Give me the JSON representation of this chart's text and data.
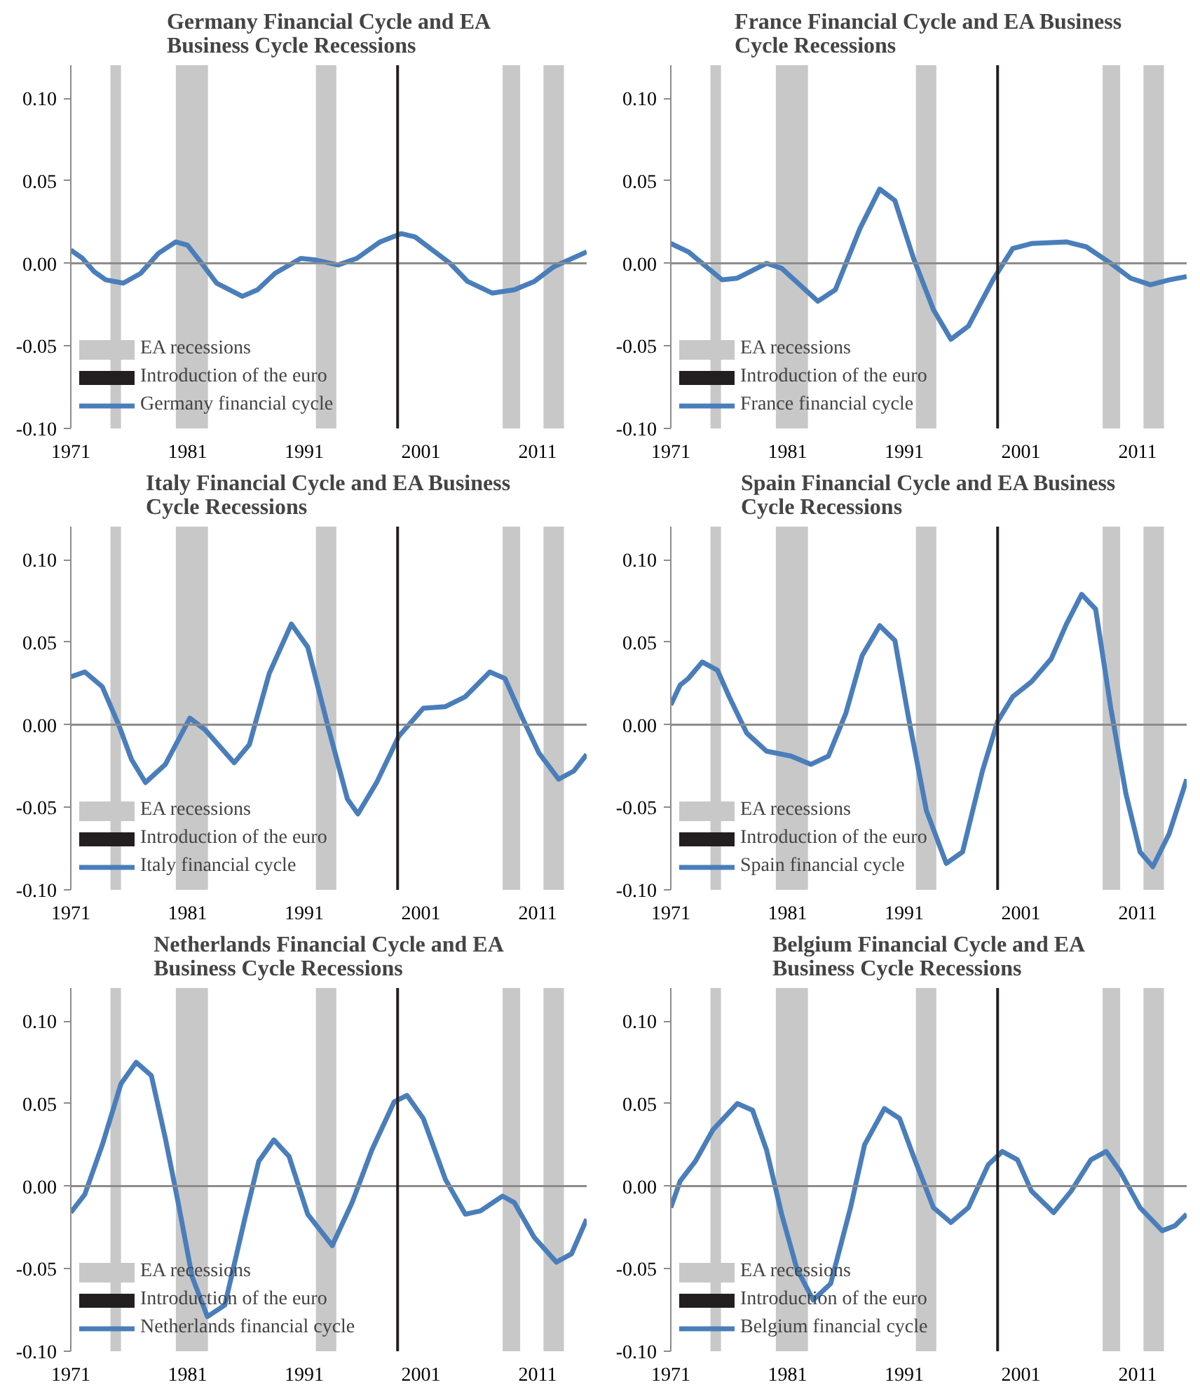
{
  "chart_data": [
    {
      "type": "line",
      "title": "Germany Financial Cycle and EA Business Cycle Recessions",
      "xlim": [
        1971,
        2015.2
      ],
      "ylim": [
        -0.1,
        0.12
      ],
      "xticks": [
        1971,
        1981,
        1991,
        2001,
        2011
      ],
      "yticks": [
        {
          "value": -0.1,
          "label": "-0.10"
        },
        {
          "value": -0.05,
          "label": "-0.05"
        },
        {
          "value": 0,
          "label": "0.00"
        },
        {
          "value": 0.05,
          "label": "0.05"
        },
        {
          "value": 0.1,
          "label": "0.10"
        }
      ],
      "grid": false,
      "legend": "bottom left",
      "marker": "none",
      "line_style": "solid",
      "bands": [
        {
          "axis": "x",
          "from": 1974.4,
          "to": 1975.3,
          "label": "EA recessions",
          "color": "#c8c8c8"
        },
        {
          "axis": "x",
          "from": 1980,
          "to": 1982.75,
          "color": "#c8c8c8"
        },
        {
          "axis": "x",
          "from": 1992,
          "to": 1993.75,
          "color": "#c8c8c8"
        },
        {
          "axis": "x",
          "from": 2008,
          "to": 2009.5,
          "color": "#c8c8c8"
        },
        {
          "axis": "x",
          "from": 2011.5,
          "to": 2013.25,
          "color": "#c8c8c8"
        }
      ],
      "ref_lines": [
        {
          "axis": "y",
          "value": 0,
          "color": "#8c8c8c"
        },
        {
          "axis": "x",
          "value": 1999,
          "label": "Introduction of the euro",
          "color": "#231f20"
        }
      ],
      "series": [
        {
          "name": "Germany financial cycle",
          "color": "#4a7ebb",
          "x": [
            1971,
            1972,
            1973,
            1974,
            1975.5,
            1977,
            1978.5,
            1980,
            1981,
            1982,
            1983.5,
            1985.7,
            1987,
            1988.5,
            1990.7,
            1992,
            1993.9,
            1995.5,
            1997.5,
            1999.3,
            2000.5,
            2002,
            2003.5,
            2005,
            2007.1,
            2009,
            2010.7,
            2012.4,
            2015.2
          ],
          "values": [
            0.008,
            0.003,
            -0.005,
            -0.01,
            -0.012,
            -0.006,
            0.006,
            0.013,
            0.011,
            0.002,
            -0.012,
            -0.02,
            -0.016,
            -0.006,
            0.003,
            0.002,
            -0.001,
            0.003,
            0.013,
            0.018,
            0.016,
            0.008,
            0.0,
            -0.011,
            -0.018,
            -0.016,
            -0.011,
            -0.002,
            0.007
          ]
        }
      ]
    },
    {
      "type": "line",
      "title": "France Financial Cycle and EA Business Cycle Recessions",
      "xlim": [
        1971,
        2015.2
      ],
      "ylim": [
        -0.1,
        0.12
      ],
      "xticks": [
        1971,
        1981,
        1991,
        2001,
        2011
      ],
      "yticks": [
        {
          "value": -0.1,
          "label": "-0.10"
        },
        {
          "value": -0.05,
          "label": "-0.05"
        },
        {
          "value": 0,
          "label": "0.00"
        },
        {
          "value": 0.05,
          "label": "0.05"
        },
        {
          "value": 0.1,
          "label": "0.10"
        }
      ],
      "grid": false,
      "legend": "bottom left",
      "marker": "none",
      "line_style": "solid",
      "bands": [
        {
          "axis": "x",
          "from": 1974.4,
          "to": 1975.3,
          "label": "EA recessions",
          "color": "#c8c8c8"
        },
        {
          "axis": "x",
          "from": 1980,
          "to": 1982.75,
          "color": "#c8c8c8"
        },
        {
          "axis": "x",
          "from": 1992,
          "to": 1993.75,
          "color": "#c8c8c8"
        },
        {
          "axis": "x",
          "from": 2008,
          "to": 2009.5,
          "color": "#c8c8c8"
        },
        {
          "axis": "x",
          "from": 2011.5,
          "to": 2013.25,
          "color": "#c8c8c8"
        }
      ],
      "ref_lines": [
        {
          "axis": "y",
          "value": 0,
          "color": "#8c8c8c"
        },
        {
          "axis": "x",
          "value": 1999,
          "label": "Introduction of the euro",
          "color": "#231f20"
        }
      ],
      "series": [
        {
          "name": "France financial cycle",
          "color": "#4a7ebb",
          "x": [
            1971,
            1972.5,
            1975.4,
            1976.7,
            1979.2,
            1980.5,
            1983.6,
            1985.1,
            1987.2,
            1988.9,
            1990.2,
            1991.8,
            1993.5,
            1995,
            1996.5,
            1998.6,
            2000.3,
            2001.9,
            2004.9,
            2006.6,
            2008.7,
            2010.4,
            2012.1,
            2013.7,
            2015.2
          ],
          "values": [
            0.012,
            0.007,
            -0.01,
            -0.009,
            0.0,
            -0.003,
            -0.023,
            -0.016,
            0.021,
            0.045,
            0.038,
            0.003,
            -0.028,
            -0.046,
            -0.038,
            -0.01,
            0.009,
            0.012,
            0.013,
            0.01,
            0.0,
            -0.009,
            -0.013,
            -0.01,
            -0.008
          ]
        }
      ]
    },
    {
      "type": "line",
      "title": "Italy Financial Cycle and EA Business Cycle Recessions",
      "xlim": [
        1971,
        2015.2
      ],
      "ylim": [
        -0.1,
        0.12
      ],
      "xticks": [
        1971,
        1981,
        1991,
        2001,
        2011
      ],
      "yticks": [
        {
          "value": -0.1,
          "label": "-0.10"
        },
        {
          "value": -0.05,
          "label": "-0.05"
        },
        {
          "value": 0,
          "label": "0.00"
        },
        {
          "value": 0.05,
          "label": "0.05"
        },
        {
          "value": 0.1,
          "label": "0.10"
        }
      ],
      "grid": false,
      "legend": "bottom left",
      "marker": "none",
      "line_style": "solid",
      "bands": [
        {
          "axis": "x",
          "from": 1974.4,
          "to": 1975.3,
          "label": "EA recessions",
          "color": "#c8c8c8"
        },
        {
          "axis": "x",
          "from": 1980,
          "to": 1982.75,
          "color": "#c8c8c8"
        },
        {
          "axis": "x",
          "from": 1992,
          "to": 1993.75,
          "color": "#c8c8c8"
        },
        {
          "axis": "x",
          "from": 2008,
          "to": 2009.5,
          "color": "#c8c8c8"
        },
        {
          "axis": "x",
          "from": 2011.5,
          "to": 2013.25,
          "color": "#c8c8c8"
        }
      ],
      "ref_lines": [
        {
          "axis": "y",
          "value": 0,
          "color": "#8c8c8c"
        },
        {
          "axis": "x",
          "value": 1999,
          "label": "Introduction of the euro",
          "color": "#231f20"
        }
      ],
      "series": [
        {
          "name": "Italy financial cycle",
          "color": "#4a7ebb",
          "x": [
            1971,
            1972.2,
            1973.7,
            1975.1,
            1976.2,
            1977.4,
            1979.1,
            1981.2,
            1982.5,
            1985,
            1986.3,
            1988,
            1989.9,
            1991.3,
            1993,
            1994.7,
            1995.6,
            1997.2,
            1999.1,
            2001.2,
            2003.1,
            2004.8,
            2006.9,
            2008.2,
            2009.7,
            2011.1,
            2012.8,
            2014.1,
            2015.2
          ],
          "values": [
            0.029,
            0.032,
            0.023,
            0.0,
            -0.021,
            -0.035,
            -0.024,
            0.004,
            -0.003,
            -0.023,
            -0.012,
            0.031,
            0.061,
            0.047,
            0.0,
            -0.045,
            -0.054,
            -0.035,
            -0.007,
            0.01,
            0.011,
            0.017,
            0.032,
            0.028,
            0.004,
            -0.017,
            -0.033,
            -0.028,
            -0.018
          ]
        }
      ]
    },
    {
      "type": "line",
      "title": "Spain Financial Cycle and EA Business Cycle Recessions",
      "xlim": [
        1971,
        2015.2
      ],
      "ylim": [
        -0.1,
        0.12
      ],
      "xticks": [
        1971,
        1981,
        1991,
        2001,
        2011
      ],
      "yticks": [
        {
          "value": -0.1,
          "label": "-0.10"
        },
        {
          "value": -0.05,
          "label": "-0.05"
        },
        {
          "value": 0,
          "label": "0.00"
        },
        {
          "value": 0.05,
          "label": "0.05"
        },
        {
          "value": 0.1,
          "label": "0.10"
        }
      ],
      "grid": false,
      "legend": "bottom left",
      "marker": "none",
      "line_style": "solid",
      "bands": [
        {
          "axis": "x",
          "from": 1974.4,
          "to": 1975.3,
          "label": "EA recessions",
          "color": "#c8c8c8"
        },
        {
          "axis": "x",
          "from": 1980,
          "to": 1982.75,
          "color": "#c8c8c8"
        },
        {
          "axis": "x",
          "from": 1992,
          "to": 1993.75,
          "color": "#c8c8c8"
        },
        {
          "axis": "x",
          "from": 2008,
          "to": 2009.5,
          "color": "#c8c8c8"
        },
        {
          "axis": "x",
          "from": 2011.5,
          "to": 2013.25,
          "color": "#c8c8c8"
        }
      ],
      "ref_lines": [
        {
          "axis": "y",
          "value": 0,
          "color": "#8c8c8c"
        },
        {
          "axis": "x",
          "value": 1999,
          "label": "Introduction of the euro",
          "color": "#231f20"
        }
      ],
      "series": [
        {
          "name": "Spain financial cycle",
          "color": "#4a7ebb",
          "x": [
            1971,
            1971.8,
            1972.5,
            1973.7,
            1975,
            1976,
            1977.5,
            1979.2,
            1981.3,
            1983,
            1984.5,
            1986,
            1987.4,
            1988.9,
            1990.2,
            1991.4,
            1992.9,
            1994.6,
            1996,
            1997.7,
            1999,
            2000.3,
            2001.9,
            2003.6,
            2004.9,
            2006.2,
            2007.4,
            2008.7,
            2010,
            2011.2,
            2012.3,
            2013.7,
            2015.2
          ],
          "values": [
            0.012,
            0.024,
            0.028,
            0.038,
            0.033,
            0.017,
            -0.005,
            -0.016,
            -0.019,
            -0.024,
            -0.019,
            0.007,
            0.042,
            0.06,
            0.051,
            0.003,
            -0.052,
            -0.084,
            -0.077,
            -0.028,
            0.002,
            0.017,
            0.026,
            0.04,
            0.061,
            0.079,
            0.07,
            0.01,
            -0.042,
            -0.077,
            -0.086,
            -0.066,
            -0.033
          ]
        }
      ]
    },
    {
      "type": "line",
      "title": "Netherlands Financial Cycle and EA Business Cycle Recessions",
      "xlim": [
        1971,
        2015.2
      ],
      "ylim": [
        -0.1,
        0.12
      ],
      "xticks": [
        1971,
        1981,
        1991,
        2001,
        2011
      ],
      "yticks": [
        {
          "value": -0.1,
          "label": "-0.10"
        },
        {
          "value": -0.05,
          "label": "-0.05"
        },
        {
          "value": 0,
          "label": "0.00"
        },
        {
          "value": 0.05,
          "label": "0.05"
        },
        {
          "value": 0.1,
          "label": "0.10"
        }
      ],
      "grid": false,
      "legend": "bottom left",
      "marker": "none",
      "line_style": "solid",
      "bands": [
        {
          "axis": "x",
          "from": 1974.4,
          "to": 1975.3,
          "label": "EA recessions",
          "color": "#c8c8c8"
        },
        {
          "axis": "x",
          "from": 1980,
          "to": 1982.75,
          "color": "#c8c8c8"
        },
        {
          "axis": "x",
          "from": 1992,
          "to": 1993.75,
          "color": "#c8c8c8"
        },
        {
          "axis": "x",
          "from": 2008,
          "to": 2009.5,
          "color": "#c8c8c8"
        },
        {
          "axis": "x",
          "from": 2011.5,
          "to": 2013.25,
          "color": "#c8c8c8"
        }
      ],
      "ref_lines": [
        {
          "axis": "y",
          "value": 0,
          "color": "#8c8c8c"
        },
        {
          "axis": "x",
          "value": 1999,
          "label": "Introduction of the euro",
          "color": "#231f20"
        }
      ],
      "series": [
        {
          "name": "Netherlands financial cycle",
          "color": "#4a7ebb",
          "x": [
            1971,
            1972.2,
            1973.7,
            1975.3,
            1976.6,
            1977.9,
            1979.1,
            1980.2,
            1981.4,
            1982.7,
            1984.2,
            1985.9,
            1987.1,
            1988.4,
            1989.7,
            1991.3,
            1993.4,
            1995.1,
            1996.8,
            1998.7,
            1999.8,
            2001.2,
            2003.1,
            2004.8,
            2006.1,
            2008,
            2009,
            2010.7,
            2012.6,
            2013.9,
            2015.2
          ],
          "values": [
            -0.016,
            -0.005,
            0.025,
            0.062,
            0.075,
            0.067,
            0.029,
            -0.01,
            -0.055,
            -0.079,
            -0.072,
            -0.02,
            0.015,
            0.028,
            0.018,
            -0.017,
            -0.036,
            -0.01,
            0.022,
            0.051,
            0.055,
            0.041,
            0.004,
            -0.017,
            -0.015,
            -0.006,
            -0.01,
            -0.031,
            -0.046,
            -0.041,
            -0.02
          ]
        }
      ]
    },
    {
      "type": "line",
      "title": "Belgium Financial Cycle and EA Business Cycle Recessions",
      "xlim": [
        1971,
        2015.2
      ],
      "ylim": [
        -0.1,
        0.12
      ],
      "xticks": [
        1971,
        1981,
        1991,
        2001,
        2011
      ],
      "yticks": [
        {
          "value": -0.1,
          "label": "-0.10"
        },
        {
          "value": -0.05,
          "label": "-0.05"
        },
        {
          "value": 0,
          "label": "0.00"
        },
        {
          "value": 0.05,
          "label": "0.05"
        },
        {
          "value": 0.1,
          "label": "0.10"
        }
      ],
      "grid": false,
      "legend": "bottom left",
      "marker": "none",
      "line_style": "solid",
      "bands": [
        {
          "axis": "x",
          "from": 1974.4,
          "to": 1975.3,
          "label": "EA recessions",
          "color": "#c8c8c8"
        },
        {
          "axis": "x",
          "from": 1980,
          "to": 1982.75,
          "color": "#c8c8c8"
        },
        {
          "axis": "x",
          "from": 1992,
          "to": 1993.75,
          "color": "#c8c8c8"
        },
        {
          "axis": "x",
          "from": 2008,
          "to": 2009.5,
          "color": "#c8c8c8"
        },
        {
          "axis": "x",
          "from": 2011.5,
          "to": 2013.25,
          "color": "#c8c8c8"
        }
      ],
      "ref_lines": [
        {
          "axis": "y",
          "value": 0,
          "color": "#8c8c8c"
        },
        {
          "axis": "x",
          "value": 1999,
          "label": "Introduction of the euro",
          "color": "#231f20"
        }
      ],
      "series": [
        {
          "name": "Belgium financial cycle",
          "color": "#4a7ebb",
          "x": [
            1971,
            1971.8,
            1973.1,
            1974.6,
            1976.7,
            1978,
            1979.2,
            1980.5,
            1981.8,
            1983.2,
            1984.7,
            1986.4,
            1987.6,
            1989.3,
            1990.6,
            1991.8,
            1993.5,
            1995,
            1996.5,
            1998.2,
            1999.4,
            2000.7,
            2001.9,
            2003.8,
            2005.3,
            2007,
            2008.3,
            2009.5,
            2011.2,
            2013.1,
            2014.2,
            2015.2
          ],
          "values": [
            -0.013,
            0.003,
            0.015,
            0.034,
            0.05,
            0.046,
            0.022,
            -0.017,
            -0.05,
            -0.069,
            -0.059,
            -0.013,
            0.025,
            0.047,
            0.041,
            0.018,
            -0.013,
            -0.022,
            -0.013,
            0.013,
            0.021,
            0.016,
            -0.003,
            -0.016,
            -0.003,
            0.016,
            0.021,
            0.009,
            -0.013,
            -0.027,
            -0.024,
            -0.017
          ]
        }
      ]
    }
  ]
}
